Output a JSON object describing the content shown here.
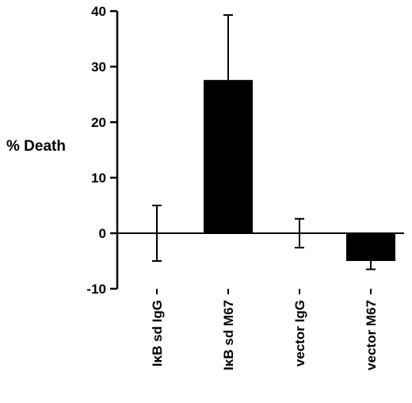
{
  "chart_data": {
    "type": "bar",
    "title": "",
    "xlabel": "",
    "ylabel": "% Death",
    "ylim": [
      -10,
      40
    ],
    "yticks": [
      -10,
      0,
      10,
      20,
      30,
      40
    ],
    "grid": false,
    "categories": [
      "IκB sd IgG",
      "IκB sd M67",
      "vector IgG",
      "vector M67"
    ],
    "values": [
      0,
      27.6,
      0,
      -5.0
    ],
    "error_bars": [
      5.0,
      11.7,
      2.6,
      1.5
    ],
    "colors": {
      "bar": "#000000",
      "axis": "#000000",
      "background": "#ffffff"
    }
  }
}
